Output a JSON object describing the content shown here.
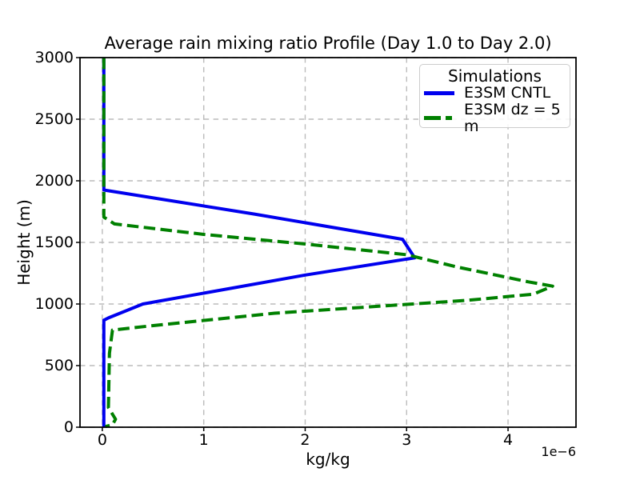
{
  "chart_data": {
    "type": "line",
    "title": "Average rain mixing ratio Profile (Day 1.0 to Day 2.0)",
    "xlabel": "kg/kg",
    "ylabel": "Height (m)",
    "x_offset_label": "1e−6",
    "x_value_scale_note": "x values below are in units of 1e-6 kg/kg",
    "xlim": [
      -0.22,
      4.67
    ],
    "ylim": [
      0,
      3000
    ],
    "xticks": [
      0,
      1,
      2,
      3,
      4
    ],
    "yticks": [
      0,
      500,
      1000,
      1500,
      2000,
      2500,
      3000
    ],
    "grid": true,
    "grid_style": "dashed",
    "legend": {
      "title": "Simulations",
      "position": "upper right"
    },
    "colors": {
      "grid": "#bbbbbb",
      "spine": "#000000",
      "background": "#ffffff"
    },
    "series": [
      {
        "name": "E3SM CNTL",
        "color": "#0000ee",
        "style": "solid",
        "points": [
          [
            0.015,
            3000
          ],
          [
            0.015,
            1925
          ],
          [
            1.5,
            1730
          ],
          [
            2.96,
            1525
          ],
          [
            3.08,
            1375
          ],
          [
            2.0,
            1235
          ],
          [
            0.4,
            1000
          ],
          [
            0.06,
            887
          ],
          [
            0.015,
            868
          ],
          [
            0.015,
            0
          ]
        ]
      },
      {
        "name": "E3SM dz = 5 m",
        "color": "#008000",
        "style": "dashed",
        "points": [
          [
            0.015,
            3000
          ],
          [
            0.015,
            1705
          ],
          [
            0.12,
            1650
          ],
          [
            1.0,
            1565
          ],
          [
            2.0,
            1487
          ],
          [
            3.0,
            1400
          ],
          [
            3.5,
            1300
          ],
          [
            4.2,
            1180
          ],
          [
            4.44,
            1145
          ],
          [
            4.25,
            1080
          ],
          [
            3.6,
            1030
          ],
          [
            1.7,
            925
          ],
          [
            0.45,
            820
          ],
          [
            0.1,
            788
          ],
          [
            0.07,
            600
          ],
          [
            0.06,
            160
          ],
          [
            0.13,
            65
          ],
          [
            0.1,
            20
          ],
          [
            0.03,
            5
          ]
        ]
      }
    ]
  }
}
